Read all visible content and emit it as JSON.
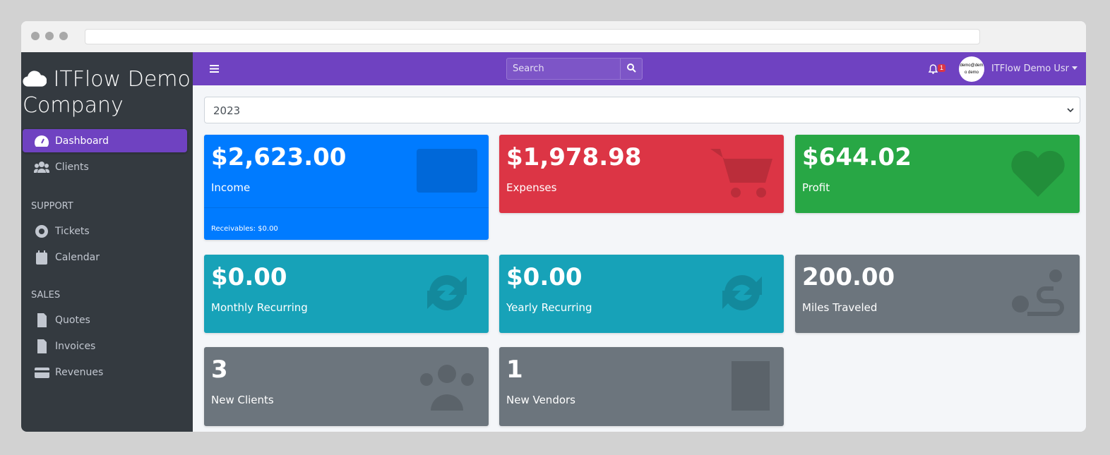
{
  "brand": "ITFlow Demo Company",
  "sidebar": {
    "items": [
      {
        "label": "Dashboard",
        "icon": "tachometer-icon",
        "active": true
      },
      {
        "label": "Clients",
        "icon": "users-icon"
      }
    ],
    "support_header": "SUPPORT",
    "support": [
      {
        "label": "Tickets",
        "icon": "life-ring-icon"
      },
      {
        "label": "Calendar",
        "icon": "calendar-icon"
      }
    ],
    "sales_header": "SALES",
    "sales": [
      {
        "label": "Quotes",
        "icon": "file-icon"
      },
      {
        "label": "Invoices",
        "icon": "file-invoice-dollar-icon"
      },
      {
        "label": "Revenues",
        "icon": "credit-card-icon"
      }
    ]
  },
  "topnav": {
    "search_placeholder": "Search",
    "notif_count": "1",
    "avatar_text": "demo@demo demo",
    "user": "ITFlow Demo Usr",
    "color": "#6f42c1"
  },
  "year": "2023",
  "cards": [
    {
      "value": "$2,623.00",
      "label": "Income",
      "footer": "Receivables: $0.00",
      "color": "#007bff"
    },
    {
      "value": "$1,978.98",
      "label": "Expenses",
      "color": "#dc3545"
    },
    {
      "value": "$644.02",
      "label": "Profit",
      "color": "#28a745"
    },
    {
      "value": "$0.00",
      "label": "Monthly Recurring",
      "color": "#17a2b8"
    },
    {
      "value": "$0.00",
      "label": "Yearly Recurring",
      "color": "#17a2b8"
    },
    {
      "value": "200.00",
      "label": "Miles Traveled",
      "color": "#6c757d"
    },
    {
      "value": "3",
      "label": "New Clients",
      "color": "#6c757d"
    },
    {
      "value": "1",
      "label": "New Vendors",
      "color": "#6c757d"
    }
  ]
}
